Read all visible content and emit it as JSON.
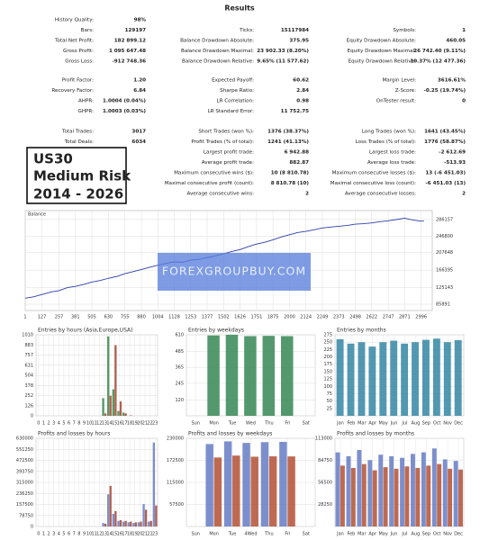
{
  "results": {
    "title": "Results",
    "blocks": [
      [
        {
          "left": [
            "History Quality:",
            "98%"
          ]
        },
        {
          "left": [
            "Bars:",
            "129197"
          ],
          "middle": [
            "Ticks:",
            "15117984"
          ],
          "right": [
            "Symbols:",
            "1"
          ]
        },
        {
          "left": [
            "Total Net Profit:",
            "182 899.12"
          ],
          "middle": [
            "Balance Drawdown Absolute:",
            "375.95"
          ],
          "right": [
            "Equity Drawdown Absolute:",
            "460.05"
          ]
        },
        {
          "left": [
            "Gross Profit:",
            "1 095 647.48"
          ],
          "middle": [
            "Balance Drawdown Maximal:",
            "23 902.33 (8.20%)"
          ],
          "right": [
            "Equity Drawdown Maximal:",
            "26 742.40 (9.11%)"
          ]
        },
        {
          "left": [
            "Gross Loss:",
            "-912 748.36"
          ],
          "middle": [
            "Balance Drawdown Relative:",
            "9.65% (11 577.62)"
          ],
          "right": [
            "Equity Drawdown Relative:",
            "10.37% (12 477.36)"
          ]
        }
      ],
      [
        {
          "left": [
            "Profit Factor:",
            "1.20"
          ],
          "middle": [
            "Expected Payoff:",
            "60.62"
          ],
          "right": [
            "Margin Level:",
            "3616.61%"
          ]
        },
        {
          "left": [
            "Recovery Factor:",
            "6.84"
          ],
          "middle": [
            "Sharpe Ratio:",
            "2.84"
          ],
          "right": [
            "Z-Score:",
            "-0.25 (19.74%)"
          ]
        },
        {
          "left": [
            "AHPR:",
            "1.0004 (0.04%)"
          ],
          "middle": [
            "LR Correlation:",
            "0.98"
          ],
          "right": [
            "OnTester result:",
            "0"
          ]
        },
        {
          "left": [
            "GHPR:",
            "1.0003 (0.03%)"
          ],
          "middle": [
            "LR Standard Error:",
            "11 752.75"
          ]
        }
      ],
      [
        {
          "left": [
            "Total Trades:",
            "3017"
          ],
          "middle": [
            "Short Trades (won %):",
            "1376 (38.37%)"
          ],
          "right": [
            "Long Trades (won %):",
            "1641 (43.45%)"
          ]
        },
        {
          "left": [
            "Total Deals:",
            "6034"
          ],
          "middle": [
            "Profit Trades (% of total):",
            "1241 (41.13%)"
          ],
          "right": [
            "Loss Trades (% of total):",
            "1776 (58.87%)"
          ]
        },
        {
          "middle": [
            "Largest profit trade:",
            "6 942.88"
          ],
          "right": [
            "Largest loss trade:",
            "-2 612.69"
          ]
        },
        {
          "middle": [
            "Average profit trade:",
            "882.87"
          ],
          "right": [
            "Average loss trade:",
            "-513.93"
          ]
        },
        {
          "middle": [
            "Maximum consecutive wins ($):",
            "10 (8 810.78)"
          ],
          "right": [
            "Maximum consecutive losses ($):",
            "13 (-6 451.03)"
          ]
        },
        {
          "middle": [
            "Maximal consecutive profit (count):",
            "8 810.78 (10)"
          ],
          "right": [
            "Maximal consecutive loss (count):",
            "-6 451.03 (13)"
          ]
        },
        {
          "middle": [
            "Average consecutive wins:",
            "2"
          ],
          "right": [
            "Average consecutive losses:",
            "2"
          ]
        }
      ]
    ]
  },
  "badge": [
    "US30",
    "Medium Risk",
    "2014 - 2026"
  ],
  "watermark": "FOREXGROUPBUY.COM",
  "chart_data": [
    {
      "type": "line",
      "title": "Balance",
      "x": [
        1,
        60,
        120,
        200,
        257,
        320,
        381,
        450,
        505,
        570,
        630,
        700,
        755,
        820,
        880,
        940,
        1004,
        1060,
        1128,
        1190,
        1253,
        1320,
        1377,
        1440,
        1502,
        1560,
        1626,
        1690,
        1751,
        1810,
        1875,
        1940,
        2000,
        2060,
        2124,
        2190,
        2249,
        2310,
        2373,
        2440,
        2498,
        2560,
        2622,
        2690,
        2747,
        2810,
        2871,
        2930,
        2996,
        3017
      ],
      "series": [
        {
          "color": "#2b3fa8",
          "values": [
            100000,
            103000,
            108000,
            115000,
            118000,
            125000,
            128000,
            133000,
            138000,
            142000,
            147000,
            152000,
            158000,
            163000,
            168000,
            173000,
            178000,
            182000,
            186000,
            185000,
            190000,
            192000,
            196000,
            200000,
            205000,
            210000,
            215000,
            222000,
            228000,
            232000,
            238000,
            245000,
            250000,
            255000,
            258000,
            262000,
            266000,
            268000,
            270000,
            272000,
            275000,
            276000,
            278000,
            281000,
            283000,
            286000,
            289000,
            285000,
            282000,
            282899
          ]
        }
      ],
      "xlim": [
        1,
        3080
      ],
      "xticks": [
        1,
        127,
        257,
        381,
        505,
        630,
        755,
        880,
        1004,
        1128,
        1253,
        1377,
        1502,
        1626,
        1751,
        1875,
        2000,
        2124,
        2249,
        2373,
        2498,
        2622,
        2747,
        2871,
        2996
      ],
      "ylim": [
        71000,
        307000
      ],
      "yticks": [
        85891,
        125143,
        166395,
        207648,
        246800,
        286157
      ],
      "grid": true
    },
    {
      "type": "bar",
      "title": "Entries by hours (Asia,Europe,USA)",
      "categories": [
        0,
        1,
        2,
        3,
        4,
        5,
        6,
        7,
        8,
        9,
        10,
        11,
        12,
        13,
        14,
        15,
        16,
        17,
        18,
        19,
        20,
        21,
        22,
        23
      ],
      "series": [
        {
          "color": "#3c8a4e",
          "values": [
            0,
            0,
            0,
            0,
            0,
            0,
            0,
            0,
            0,
            0,
            0,
            0,
            0,
            220,
            990,
            330,
            60,
            40,
            0,
            0,
            0,
            0,
            0,
            0
          ]
        },
        {
          "color": "#a94a35",
          "values": [
            0,
            0,
            0,
            0,
            0,
            0,
            0,
            0,
            0,
            0,
            0,
            0,
            0,
            30,
            250,
            880,
            180,
            30,
            6,
            0,
            0,
            0,
            0,
            0
          ]
        }
      ],
      "ylim": [
        0,
        1010
      ],
      "yticks": [
        0,
        126,
        252,
        378,
        504,
        631,
        757,
        883,
        1010
      ]
    },
    {
      "type": "bar",
      "title": "Entries by weekdays",
      "categories": [
        "Sun",
        "Mon",
        "Tue",
        "Wed",
        "Thu",
        "Fri",
        "Sat"
      ],
      "series": [
        {
          "color": "#3c8a5a",
          "values": [
            0,
            605,
            610,
            600,
            602,
            600,
            0
          ]
        }
      ],
      "ylim": [
        0,
        610
      ],
      "yticks": [
        120,
        245,
        365,
        485,
        610
      ]
    },
    {
      "type": "bar",
      "title": "Entries by months",
      "categories": [
        "Jan",
        "Feb",
        "Mar",
        "Apr",
        "May",
        "Jun",
        "Jul",
        "Aug",
        "Sep",
        "Oct",
        "Nov",
        "Dec"
      ],
      "series": [
        {
          "color": "#3a8aa6",
          "values": [
            260,
            245,
            250,
            235,
            250,
            255,
            245,
            250,
            258,
            262,
            250,
            257
          ]
        }
      ],
      "ylim": [
        0,
        275
      ],
      "yticks": [
        25,
        50,
        75,
        100,
        125,
        150,
        175,
        200,
        225,
        250,
        275
      ]
    },
    {
      "type": "bar",
      "title": "Profits and losses by hours",
      "categories": [
        0,
        1,
        2,
        3,
        4,
        5,
        6,
        7,
        8,
        9,
        10,
        11,
        12,
        13,
        14,
        15,
        16,
        17,
        18,
        19,
        20,
        21,
        22,
        23
      ],
      "series": [
        {
          "color": "#6a7fc6",
          "values": [
            0,
            0,
            0,
            0,
            0,
            0,
            0,
            0,
            0,
            0,
            0,
            0,
            0,
            25000,
            230000,
            90000,
            40000,
            35000,
            30000,
            25000,
            30000,
            160000,
            35000,
            600000
          ]
        },
        {
          "color": "#a94a35",
          "values": [
            0,
            0,
            0,
            0,
            0,
            0,
            0,
            0,
            0,
            0,
            0,
            0,
            0,
            20000,
            290000,
            110000,
            45000,
            40000,
            35000,
            30000,
            35000,
            120000,
            40000,
            150000
          ]
        }
      ],
      "ylim": [
        0,
        630000
      ],
      "yticks": [
        0,
        78750,
        157500,
        236250,
        315000,
        393750,
        472500,
        551250,
        630000
      ]
    },
    {
      "type": "bar",
      "title": "Profits and losses by weekdays",
      "categories": [
        "Sun",
        "Mon",
        "Tue",
        "4Wed",
        "Thu",
        "Fri",
        "Sat"
      ],
      "series": [
        {
          "color": "#6a7fc6",
          "values": [
            0,
            215000,
            222000,
            218000,
            220000,
            220647,
            0
          ]
        },
        {
          "color": "#b5553a",
          "values": [
            0,
            180000,
            185000,
            182000,
            183000,
            182748,
            0
          ]
        }
      ],
      "ylim": [
        0,
        230000
      ],
      "yticks": [
        57500,
        115000,
        172500,
        230000
      ]
    },
    {
      "type": "bar",
      "title": "Profits and losses by months",
      "categories": [
        "Jan",
        "Feb",
        "Mar",
        "Apr",
        "May",
        "Jun",
        "Jul",
        "Aug",
        "Sep",
        "Oct",
        "Nov",
        "Dec"
      ],
      "series": [
        {
          "color": "#6a7fc6",
          "values": [
            95000,
            90000,
            98000,
            85000,
            92000,
            90000,
            88000,
            93000,
            95000,
            100000,
            86000,
            84000
          ]
        },
        {
          "color": "#b5553a",
          "values": [
            78000,
            75000,
            80000,
            72000,
            76000,
            74000,
            77000,
            75000,
            78000,
            80000,
            74000,
            73000
          ]
        }
      ],
      "ylim": [
        0,
        113000
      ],
      "yticks": [
        28250,
        56500,
        84750,
        113000
      ]
    }
  ]
}
